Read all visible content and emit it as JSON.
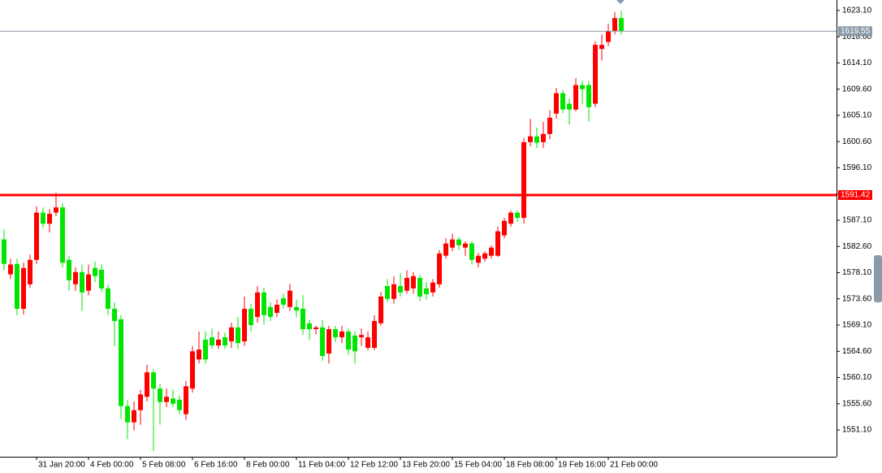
{
  "chart_data": {
    "type": "candlestick",
    "categories": [
      null,
      null,
      null,
      null,
      null,
      "31 Jan 20:00",
      null,
      null,
      null,
      null,
      null,
      null,
      null,
      "4 Feb 00:00",
      null,
      null,
      null,
      null,
      null,
      null,
      null,
      "5 Feb 08:00",
      null,
      null,
      null,
      null,
      null,
      null,
      null,
      "6 Feb 16:00",
      null,
      null,
      null,
      null,
      null,
      null,
      null,
      "8 Feb 00:00",
      null,
      null,
      null,
      null,
      null,
      null,
      null,
      "11 Feb 04:00",
      null,
      null,
      null,
      null,
      null,
      null,
      null,
      "12 Feb 12:00",
      null,
      null,
      null,
      null,
      null,
      null,
      null,
      "13 Feb 20:00",
      null,
      null,
      null,
      null,
      null,
      null,
      null,
      "15 Feb 04:00",
      null,
      null,
      null,
      null,
      null,
      null,
      null,
      "18 Feb 08:00",
      null,
      null,
      null,
      null,
      null,
      null,
      null,
      "19 Feb 16:00",
      null,
      null,
      null,
      null,
      null,
      null,
      null,
      "21 Feb 00:00",
      null,
      null
    ],
    "open": [
      1583.8,
      1577.8,
      1579.6,
      1571.9,
      1576.1,
      1580.3,
      1588.4,
      1586.5,
      1588.4,
      1589.3,
      1580.3,
      1576.1,
      1578.2,
      1575.0,
      1578.9,
      1578.6,
      1575.4,
      1571.9,
      1570.1,
      1555.2,
      1552.4,
      1554.5,
      1556.8,
      1561.0,
      1558.2,
      1555.9,
      1556.5,
      1556.3,
      1553.8,
      1558.2,
      1563.2,
      1566.6,
      1567.0,
      1565.6,
      1567.0,
      1566.3,
      1568.7,
      1566.3,
      1571.9,
      1570.5,
      1574.7,
      1572.2,
      1571.2,
      1573.7,
      1572.2,
      1572.2,
      1571.9,
      1569.4,
      1568.4,
      1568.7,
      1564.2,
      1568.4,
      1567.0,
      1568.0,
      1567.3,
      1567.0,
      1565.2,
      1565.2,
      1569.4,
      1575.8,
      1573.6,
      1575.8,
      1575.0,
      1575.4,
      1577.2,
      1575.4,
      1574.7,
      1576.1,
      1581.0,
      1582.4,
      1583.8,
      1582.4,
      1583.1,
      1579.8,
      1580.5,
      1581.0,
      1581.0,
      1584.5,
      1586.5,
      1588.4,
      1587.5,
      1600.5,
      1601.5,
      1600.5,
      1601.9,
      1605.4,
      1608.9,
      1607.1,
      1606.1,
      1610.3,
      1610.3,
      1607.1,
      1616.5,
      1617.7,
      1619.6,
      1621.8
    ],
    "high": [
      1585.5,
      1580.5,
      1580.5,
      1579.8,
      1581.2,
      1589.5,
      1589.3,
      1589.0,
      1591.8,
      1590.0,
      1581.0,
      1579.0,
      1579.5,
      1579.5,
      1580.0,
      1579.5,
      1576.0,
      1573.0,
      1570.8,
      1556.2,
      1556.0,
      1558.0,
      1562.3,
      1561.5,
      1559.0,
      1558.2,
      1558.0,
      1557.0,
      1559.5,
      1565.5,
      1568.0,
      1568.0,
      1568.5,
      1568.0,
      1567.8,
      1569.5,
      1570.5,
      1574.0,
      1572.8,
      1575.8,
      1575.5,
      1573.0,
      1573.5,
      1574.5,
      1576.2,
      1573.5,
      1574.2,
      1570.0,
      1569.0,
      1570.0,
      1569.0,
      1569.0,
      1569.0,
      1568.5,
      1568.0,
      1568.5,
      1568.0,
      1570.8,
      1574.8,
      1577.0,
      1577.5,
      1578.0,
      1578.5,
      1578.2,
      1577.8,
      1576.5,
      1577.0,
      1582.0,
      1584.0,
      1584.8,
      1584.2,
      1583.5,
      1583.5,
      1581.5,
      1581.8,
      1582.8,
      1586.0,
      1587.5,
      1588.8,
      1588.8,
      1601.2,
      1604.5,
      1603.0,
      1604.0,
      1606.0,
      1609.8,
      1609.5,
      1608.0,
      1611.5,
      1611.0,
      1611.0,
      1617.8,
      1619.0,
      1620.8,
      1622.8,
      1623.0
    ],
    "low": [
      1578.5,
      1577.0,
      1570.8,
      1570.9,
      1575.5,
      1579.6,
      1585.8,
      1585.0,
      1587.8,
      1579.0,
      1575.0,
      1575.0,
      1571.5,
      1574.2,
      1576.5,
      1574.8,
      1570.8,
      1565.5,
      1553.0,
      1549.5,
      1551.0,
      1552.0,
      1556.0,
      1547.5,
      1552.0,
      1555.0,
      1555.0,
      1553.8,
      1552.8,
      1557.5,
      1562.5,
      1562.5,
      1565.0,
      1565.0,
      1565.0,
      1565.2,
      1565.0,
      1565.5,
      1568.0,
      1569.5,
      1569.2,
      1569.8,
      1570.5,
      1572.0,
      1571.5,
      1570.5,
      1567.5,
      1566.5,
      1567.5,
      1563.0,
      1562.5,
      1566.2,
      1566.0,
      1564.0,
      1562.5,
      1565.5,
      1564.8,
      1564.8,
      1569.0,
      1573.0,
      1572.8,
      1574.0,
      1574.5,
      1574.5,
      1573.2,
      1573.5,
      1574.0,
      1575.5,
      1580.5,
      1581.8,
      1582.0,
      1581.0,
      1579.5,
      1579.0,
      1580.0,
      1580.5,
      1580.8,
      1584.0,
      1586.0,
      1586.8,
      1586.5,
      1599.8,
      1599.5,
      1599.5,
      1601.0,
      1604.5,
      1605.5,
      1603.5,
      1605.8,
      1607.0,
      1604.0,
      1606.5,
      1614.5,
      1617.0,
      1619.0,
      1619.0
    ],
    "close": [
      1579.6,
      1579.5,
      1571.9,
      1578.9,
      1580.3,
      1588.4,
      1586.5,
      1588.2,
      1589.3,
      1579.8,
      1576.8,
      1578.2,
      1574.7,
      1577.8,
      1577.5,
      1575.4,
      1571.9,
      1569.8,
      1555.2,
      1552.4,
      1554.5,
      1557.2,
      1561.0,
      1558.2,
      1555.9,
      1556.8,
      1555.6,
      1554.5,
      1558.6,
      1564.6,
      1564.9,
      1563.2,
      1565.6,
      1566.6,
      1565.6,
      1568.7,
      1566.0,
      1571.9,
      1569.1,
      1574.7,
      1570.8,
      1570.5,
      1572.6,
      1572.6,
      1575.0,
      1571.6,
      1568.4,
      1568.4,
      1568.7,
      1563.8,
      1568.4,
      1567.0,
      1568.0,
      1564.9,
      1564.6,
      1567.4,
      1567.0,
      1569.8,
      1574.0,
      1573.6,
      1576.1,
      1574.7,
      1577.2,
      1577.5,
      1574.0,
      1574.4,
      1576.4,
      1581.4,
      1583.1,
      1583.8,
      1582.8,
      1583.1,
      1580.3,
      1581.0,
      1581.4,
      1582.4,
      1585.2,
      1587.0,
      1588.4,
      1587.5,
      1600.5,
      1601.5,
      1600.4,
      1601.9,
      1604.7,
      1608.9,
      1606.1,
      1606.1,
      1610.3,
      1609.6,
      1606.5,
      1617.2,
      1617.2,
      1619.6,
      1621.8,
      1619.6
    ],
    "up_color": "#ff0000",
    "down_color": "#00e600",
    "ylim": [
      1546.5,
      1624.9
    ],
    "yticks": [
      {
        "value": 1551.1,
        "label": "1551.10"
      },
      {
        "value": 1555.6,
        "label": "1555.60"
      },
      {
        "value": 1560.1,
        "label": "1560.10"
      },
      {
        "value": 1564.6,
        "label": "1564.60"
      },
      {
        "value": 1569.1,
        "label": "1569.10"
      },
      {
        "value": 1573.6,
        "label": "1573.60"
      },
      {
        "value": 1578.1,
        "label": "1578.10"
      },
      {
        "value": 1582.6,
        "label": "1582.60"
      },
      {
        "value": 1587.1,
        "label": "1587.10"
      },
      {
        "value": 1591.6,
        "label": "1591.60"
      },
      {
        "value": 1596.1,
        "label": "1596.10"
      },
      {
        "value": 1600.6,
        "label": "1600.60"
      },
      {
        "value": 1605.1,
        "label": "1605.10"
      },
      {
        "value": 1609.6,
        "label": "1609.60"
      },
      {
        "value": 1614.1,
        "label": "1614.10"
      },
      {
        "value": 1618.6,
        "label": "1618.60"
      },
      {
        "value": 1623.1,
        "label": "1623.10"
      }
    ],
    "price_lines": [
      {
        "value": 1591.42,
        "color": "#ff0000",
        "width": 3
      },
      {
        "value": 1619.55,
        "color": "#8a9aa8",
        "width": 1
      }
    ]
  }
}
